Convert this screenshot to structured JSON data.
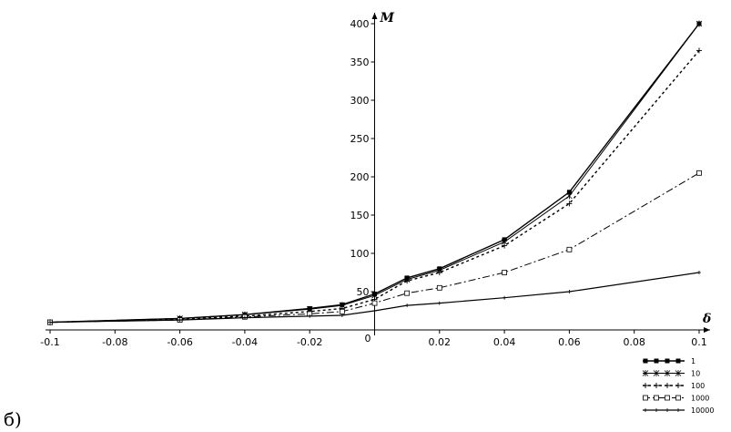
{
  "panel_label": "б)",
  "chart_data": {
    "type": "line",
    "xlabel": "δ",
    "ylabel": "M",
    "origin_label": "0",
    "xlim": [
      -0.1,
      0.1
    ],
    "ylim": [
      0,
      400
    ],
    "grid": false,
    "legend_position": "bottom-right",
    "x_ticks": [
      "-0.1",
      "-0.08",
      "-0.06",
      "-0.04",
      "-0.02",
      "0.02",
      "0.04",
      "0.06",
      "0.08",
      "0.1"
    ],
    "y_ticks": [
      "50",
      "100",
      "150",
      "200",
      "250",
      "300",
      "350",
      "400"
    ],
    "series": [
      {
        "name": "1",
        "x": [
          -0.1,
          -0.06,
          -0.04,
          -0.02,
          -0.01,
          0,
          0.01,
          0.02,
          0.04,
          0.06,
          0.1
        ],
        "y": [
          10,
          15,
          20,
          28,
          33,
          47,
          68,
          80,
          118,
          180,
          400
        ]
      },
      {
        "name": "10",
        "x": [
          -0.1,
          -0.06,
          -0.04,
          -0.02,
          -0.01,
          0,
          0.01,
          0.02,
          0.04,
          0.06,
          0.1
        ],
        "y": [
          10,
          15,
          20,
          27,
          32,
          45,
          66,
          78,
          115,
          175,
          400
        ]
      },
      {
        "name": "100",
        "x": [
          -0.1,
          -0.06,
          -0.04,
          -0.02,
          -0.01,
          0,
          0.01,
          0.02,
          0.04,
          0.06,
          0.1
        ],
        "y": [
          10,
          14,
          18,
          24,
          28,
          40,
          64,
          75,
          110,
          165,
          365
        ]
      },
      {
        "name": "1000",
        "x": [
          -0.1,
          -0.06,
          -0.04,
          -0.02,
          -0.01,
          0,
          0.01,
          0.02,
          0.04,
          0.06,
          0.1
        ],
        "y": [
          10,
          13,
          17,
          21,
          24,
          35,
          48,
          55,
          75,
          105,
          205
        ]
      },
      {
        "name": "10000",
        "x": [
          -0.1,
          -0.06,
          -0.04,
          -0.02,
          -0.01,
          0,
          0.01,
          0.02,
          0.04,
          0.06,
          0.1
        ],
        "y": [
          10,
          13,
          16,
          18,
          19,
          25,
          32,
          35,
          42,
          50,
          75
        ]
      }
    ]
  }
}
